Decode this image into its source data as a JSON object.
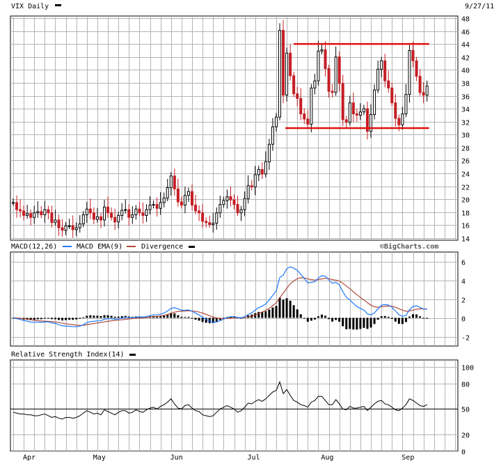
{
  "title": "VIX Daily",
  "date": "9/27/11",
  "watermark": "©BigCharts.com",
  "colors": {
    "grid": "#b4b4b4",
    "panel_bg": "#ffffff",
    "up_candle": "#000000",
    "down_candle": "#c41e24",
    "trendline": "#e01010",
    "macd": "#1e78ff",
    "macd_ema": "#b04a3a",
    "divergence": "#000000",
    "rsi": "#000000"
  },
  "month_labels": [
    "Apr",
    "May",
    "Jun",
    "Jul",
    "Aug",
    "Sep"
  ],
  "month_days": [
    0,
    20,
    42,
    64,
    85,
    108
  ],
  "total_days": 127,
  "chart_data": [
    {
      "type": "candlestick",
      "title": "VIX Daily",
      "ylim": [
        14,
        48
      ],
      "y_ticks": [
        14,
        16,
        18,
        20,
        22,
        24,
        26,
        28,
        30,
        32,
        34,
        36,
        38,
        40,
        42,
        44,
        46,
        48
      ],
      "close": [
        19.5,
        18.4,
        18.2,
        17.5,
        17.8,
        17.2,
        17.9,
        18.1,
        17.6,
        18.4,
        17.9,
        16.4,
        16.8,
        15.6,
        15.2,
        15.9,
        15.9,
        15.3,
        15.6,
        16.2,
        17.6,
        18.5,
        17.9,
        16.9,
        17.3,
        16.8,
        18.8,
        17.9,
        17.2,
        16.5,
        17.5,
        18.3,
        18.4,
        17.2,
        17.6,
        18.5,
        17.9,
        17.5,
        18.4,
        19.1,
        19.2,
        18.6,
        19.5,
        20.2,
        21.8,
        23.6,
        21.6,
        19.6,
        19.1,
        20.6,
        21.2,
        19.1,
        18.2,
        17.9,
        16.6,
        16.4,
        16.1,
        16.3,
        17.9,
        19.2,
        19.8,
        20.4,
        19.9,
        19.2,
        17.9,
        18.4,
        20.1,
        22.1,
        21.9,
        23.8,
        24.6,
        23.9,
        25.8,
        28.5,
        31.2,
        32.7,
        46.1,
        36.1,
        42.6,
        39.1,
        36.3,
        35.6,
        33.2,
        32.4,
        31.6,
        37.2,
        38.3,
        42.9,
        43.1,
        40.2,
        36.7,
        36.5,
        42.0,
        37.9,
        32.3,
        31.9,
        34.9,
        33.2,
        33.0,
        33.5,
        34.0,
        30.5,
        33.1,
        36.9,
        40.1,
        41.4,
        38.3,
        37.2,
        34.9,
        32.5,
        31.5,
        33.2,
        36.2,
        43.0,
        41.4,
        39.0,
        36.5,
        36.1,
        37.5
      ],
      "rsi_values": [
        46,
        45,
        44,
        44,
        43,
        43,
        42,
        42,
        43,
        44,
        42,
        40,
        41,
        39,
        38,
        40,
        40,
        39,
        40,
        42,
        45,
        48,
        46,
        44,
        45,
        43,
        49,
        47,
        45,
        43,
        46,
        48,
        48,
        45,
        46,
        49,
        47,
        46,
        49,
        51,
        52,
        50,
        53,
        55,
        58,
        62,
        56,
        51,
        50,
        54,
        55,
        51,
        48,
        47,
        43,
        42,
        41,
        42,
        46,
        50,
        52,
        54,
        52,
        50,
        46,
        48,
        52,
        57,
        56,
        59,
        61,
        59,
        62,
        66,
        70,
        72,
        82,
        68,
        73,
        66,
        60,
        58,
        55,
        54,
        52,
        58,
        60,
        65,
        65,
        60,
        55,
        55,
        61,
        56,
        50,
        49,
        53,
        51,
        51,
        52,
        53,
        48,
        52,
        56,
        59,
        60,
        56,
        55,
        52,
        49,
        48,
        51,
        55,
        62,
        60,
        57,
        54,
        53,
        55
      ],
      "resistance": 44.0,
      "support": 31.0,
      "trendline_start_day": 80
    },
    {
      "type": "line",
      "title": "MACD(12,26)",
      "ylim": [
        -3,
        7
      ],
      "y_ticks": [
        6,
        4,
        2,
        0,
        -2
      ],
      "series": [
        {
          "name": "MACD EMA(9)",
          "values": []
        },
        {
          "name": "Divergence",
          "values": []
        }
      ]
    },
    {
      "type": "line",
      "title": "Relative Strength Index(14)",
      "ylim": [
        0,
        108
      ],
      "y_ticks": [
        100,
        80,
        50,
        20,
        0
      ],
      "series": [
        {
          "name": "RSI",
          "values": []
        }
      ]
    }
  ]
}
